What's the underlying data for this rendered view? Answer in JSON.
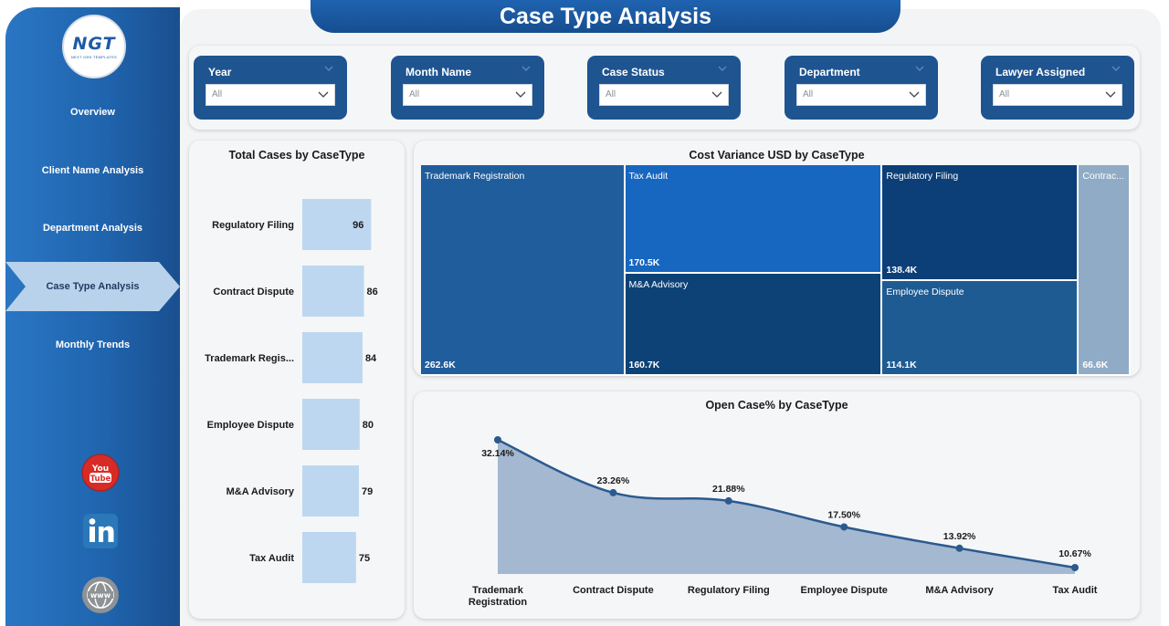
{
  "title": "Case Type Analysis",
  "logo": {
    "text_main": "NGT",
    "subtitle": "NEXT GEN TEMPLATES"
  },
  "nav": {
    "items": [
      {
        "label": "Overview"
      },
      {
        "label": "Client Name Analysis"
      },
      {
        "label": "Department Analysis"
      },
      {
        "label": "Case Type Analysis",
        "active": true
      },
      {
        "label": "Monthly Trends"
      }
    ]
  },
  "social": [
    "youtube-icon",
    "linkedin-icon",
    "website-icon"
  ],
  "filters": [
    {
      "label": "Year",
      "value": "All"
    },
    {
      "label": "Month Name",
      "value": "All"
    },
    {
      "label": "Case Status",
      "value": "All"
    },
    {
      "label": "Department",
      "value": "All"
    },
    {
      "label": "Lawyer Assigned",
      "value": "All"
    }
  ],
  "colors": {
    "sidebar": "#1f63ac",
    "filter_bg": "#1e5591",
    "bar": "#bdd7f0",
    "area_fill": "#a4b9d1",
    "line": "#2a5a8e"
  },
  "chart_data": [
    {
      "type": "bar",
      "orientation": "horizontal",
      "title": "Total Cases by CaseType",
      "categories": [
        "Regulatory Filing",
        "Contract Dispute",
        "Trademark Regis...",
        "Employee Dispute",
        "M&A Advisory",
        "Tax Audit"
      ],
      "values": [
        96,
        86,
        84,
        80,
        79,
        75
      ],
      "xlim": [
        0,
        100
      ],
      "grid": false
    },
    {
      "type": "treemap",
      "title": "Cost Variance USD by CaseType",
      "labels": [
        "Trademark Registration",
        "Tax Audit",
        "M&A Advisory",
        "Regulatory Filing",
        "Employee Dispute",
        "Contrac..."
      ],
      "value_labels": [
        "262.6K",
        "170.5K",
        "160.7K",
        "138.4K",
        "114.1K",
        "66.6K"
      ],
      "values": [
        262.6,
        170.5,
        160.7,
        138.4,
        114.1,
        66.6
      ],
      "colors": [
        "#1f5d9c",
        "#1766c0",
        "#0d4277",
        "#0c3f78",
        "#1e5b93",
        "#90abc6"
      ]
    },
    {
      "type": "area",
      "title": "Open Case% by CaseType",
      "categories": [
        "Trademark Registration",
        "Contract Dispute",
        "Regulatory Filing",
        "Employee Dispute",
        "M&A Advisory",
        "Tax Audit"
      ],
      "values": [
        32.14,
        23.26,
        21.88,
        17.5,
        13.92,
        10.67
      ],
      "value_labels": [
        "32.14%",
        "23.26%",
        "21.88%",
        "17.50%",
        "13.92%",
        "10.67%"
      ],
      "ylim": [
        10.67,
        32.14
      ],
      "grid": false
    }
  ]
}
